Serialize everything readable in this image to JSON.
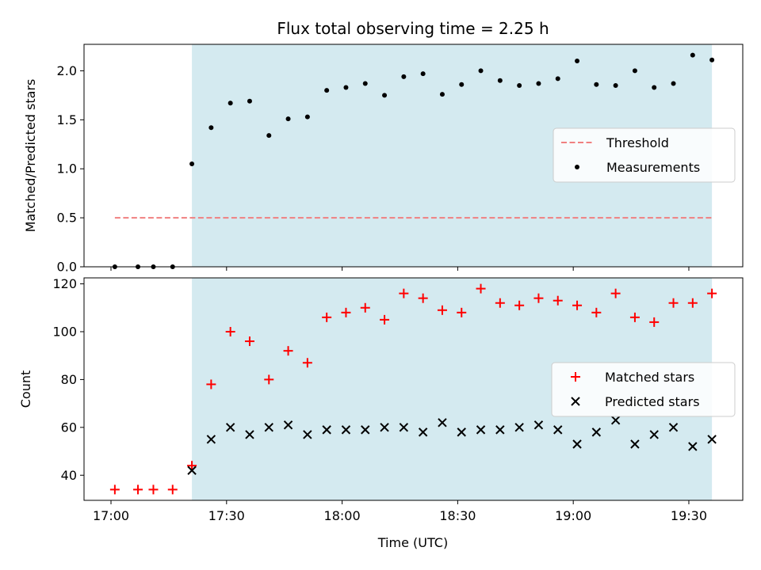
{
  "chart_data": {
    "title": "Flux total observing time = 2.25 h",
    "xlabel": "Time (UTC)",
    "x_ticks": [
      "17:00",
      "17:30",
      "18:00",
      "18:30",
      "19:00",
      "19:30"
    ],
    "x_range": [
      "16:53",
      "19:44"
    ],
    "observing_window": [
      "17:21",
      "19:36"
    ],
    "colors": {
      "window": "#d4eaf0",
      "threshold": "#f08080",
      "measurements": "#000000",
      "matched": "#ff0000",
      "predicted": "#000000"
    },
    "panels": [
      {
        "type": "scatter",
        "ylabel": "Matched/Predicted stars",
        "ylim": [
          0,
          2.27
        ],
        "y_ticks": [
          "0.0",
          "0.5",
          "1.0",
          "1.5",
          "2.0"
        ],
        "y_tick_values": [
          0,
          0.5,
          1.0,
          1.5,
          2.0
        ],
        "legend_position": "center-right",
        "legend": [
          "Threshold",
          "Measurements"
        ],
        "series": [
          {
            "name": "Threshold",
            "style": "dashed-line",
            "x": [
              "17:01",
              "19:36"
            ],
            "y": [
              0.5,
              0.5
            ]
          },
          {
            "name": "Measurements",
            "style": "dot",
            "x": [
              "17:01",
              "17:07",
              "17:11",
              "17:16",
              "17:21",
              "17:26",
              "17:31",
              "17:36",
              "17:41",
              "17:46",
              "17:51",
              "17:56",
              "18:01",
              "18:06",
              "18:11",
              "18:16",
              "18:21",
              "18:26",
              "18:31",
              "18:36",
              "18:41",
              "18:46",
              "18:51",
              "18:56",
              "19:01",
              "19:06",
              "19:11",
              "19:16",
              "19:21",
              "19:26",
              "19:31",
              "19:36"
            ],
            "y": [
              0,
              0,
              0,
              0,
              1.05,
              1.42,
              1.67,
              1.69,
              1.34,
              1.51,
              1.53,
              1.8,
              1.83,
              1.87,
              1.75,
              1.94,
              1.97,
              1.76,
              1.86,
              2.0,
              1.9,
              1.85,
              1.87,
              1.92,
              2.1,
              1.86,
              1.85,
              2.0,
              1.83,
              1.87,
              2.16,
              2.11
            ]
          }
        ]
      },
      {
        "type": "scatter",
        "ylabel": "Count",
        "ylim": [
          29.5,
          122.5
        ],
        "y_ticks": [
          "40",
          "60",
          "80",
          "100",
          "120"
        ],
        "y_tick_values": [
          40,
          60,
          80,
          100,
          120
        ],
        "legend_position": "center-right",
        "legend": [
          "Matched stars",
          "Predicted stars"
        ],
        "series": [
          {
            "name": "Matched stars",
            "style": "plus",
            "x": [
              "17:01",
              "17:07",
              "17:11",
              "17:16",
              "17:21",
              "17:26",
              "17:31",
              "17:36",
              "17:41",
              "17:46",
              "17:51",
              "17:56",
              "18:01",
              "18:06",
              "18:11",
              "18:16",
              "18:21",
              "18:26",
              "18:31",
              "18:36",
              "18:41",
              "18:46",
              "18:51",
              "18:56",
              "19:01",
              "19:06",
              "19:11",
              "19:16",
              "19:21",
              "19:26",
              "19:31",
              "19:36"
            ],
            "y": [
              34,
              34,
              34,
              34,
              44,
              78,
              100,
              96,
              80,
              92,
              87,
              106,
              108,
              110,
              105,
              116,
              114,
              109,
              108,
              118,
              112,
              111,
              114,
              113,
              111,
              108,
              116,
              106,
              104,
              112,
              112,
              116
            ]
          },
          {
            "name": "Predicted stars",
            "style": "x",
            "x": [
              "17:21",
              "17:26",
              "17:31",
              "17:36",
              "17:41",
              "17:46",
              "17:51",
              "17:56",
              "18:01",
              "18:06",
              "18:11",
              "18:16",
              "18:21",
              "18:26",
              "18:31",
              "18:36",
              "18:41",
              "18:46",
              "18:51",
              "18:56",
              "19:01",
              "19:06",
              "19:11",
              "19:16",
              "19:21",
              "19:26",
              "19:31",
              "19:36"
            ],
            "y": [
              42,
              55,
              60,
              57,
              60,
              61,
              57,
              59,
              59,
              59,
              60,
              60,
              58,
              62,
              58,
              59,
              59,
              60,
              61,
              59,
              53,
              58,
              63,
              53,
              57,
              60,
              52,
              55
            ]
          }
        ]
      }
    ]
  }
}
